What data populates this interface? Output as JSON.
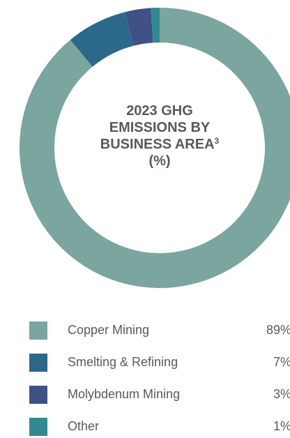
{
  "chart_data": {
    "type": "donut",
    "title": "2023 GHG EMISSIONS BY BUSINESS AREA",
    "title_superscript": "3",
    "title_unit": "(%)",
    "categories": [
      "Copper Mining",
      "Smelting & Refining",
      "Molybdenum Mining",
      "Other"
    ],
    "values": [
      89,
      7,
      3,
      1
    ],
    "value_labels": [
      "89%",
      "7%",
      "3%",
      "1%"
    ],
    "colors": [
      "#7ba59f",
      "#2c6889",
      "#3f5186",
      "#318a92"
    ]
  }
}
